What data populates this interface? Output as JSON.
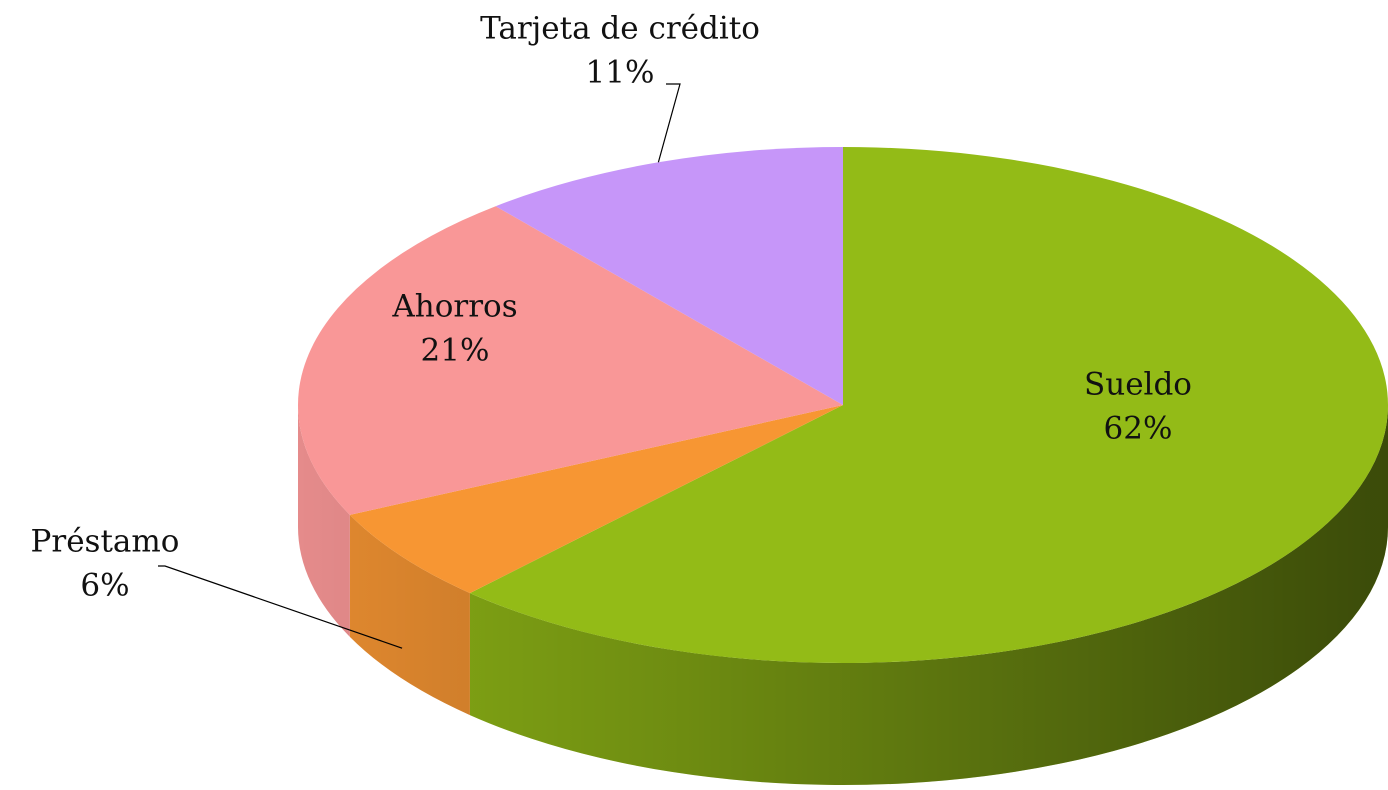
{
  "chart_data": {
    "type": "pie",
    "categories": [
      "Sueldo",
      "Préstamo",
      "Ahorros",
      "Tarjeta de crédito"
    ],
    "values": [
      62,
      6,
      21,
      11
    ],
    "value_labels": [
      "62%",
      "6%",
      "21%",
      "11%"
    ],
    "colors": [
      "#93bb17",
      "#f79633",
      "#f99797",
      "#c696f9"
    ]
  }
}
